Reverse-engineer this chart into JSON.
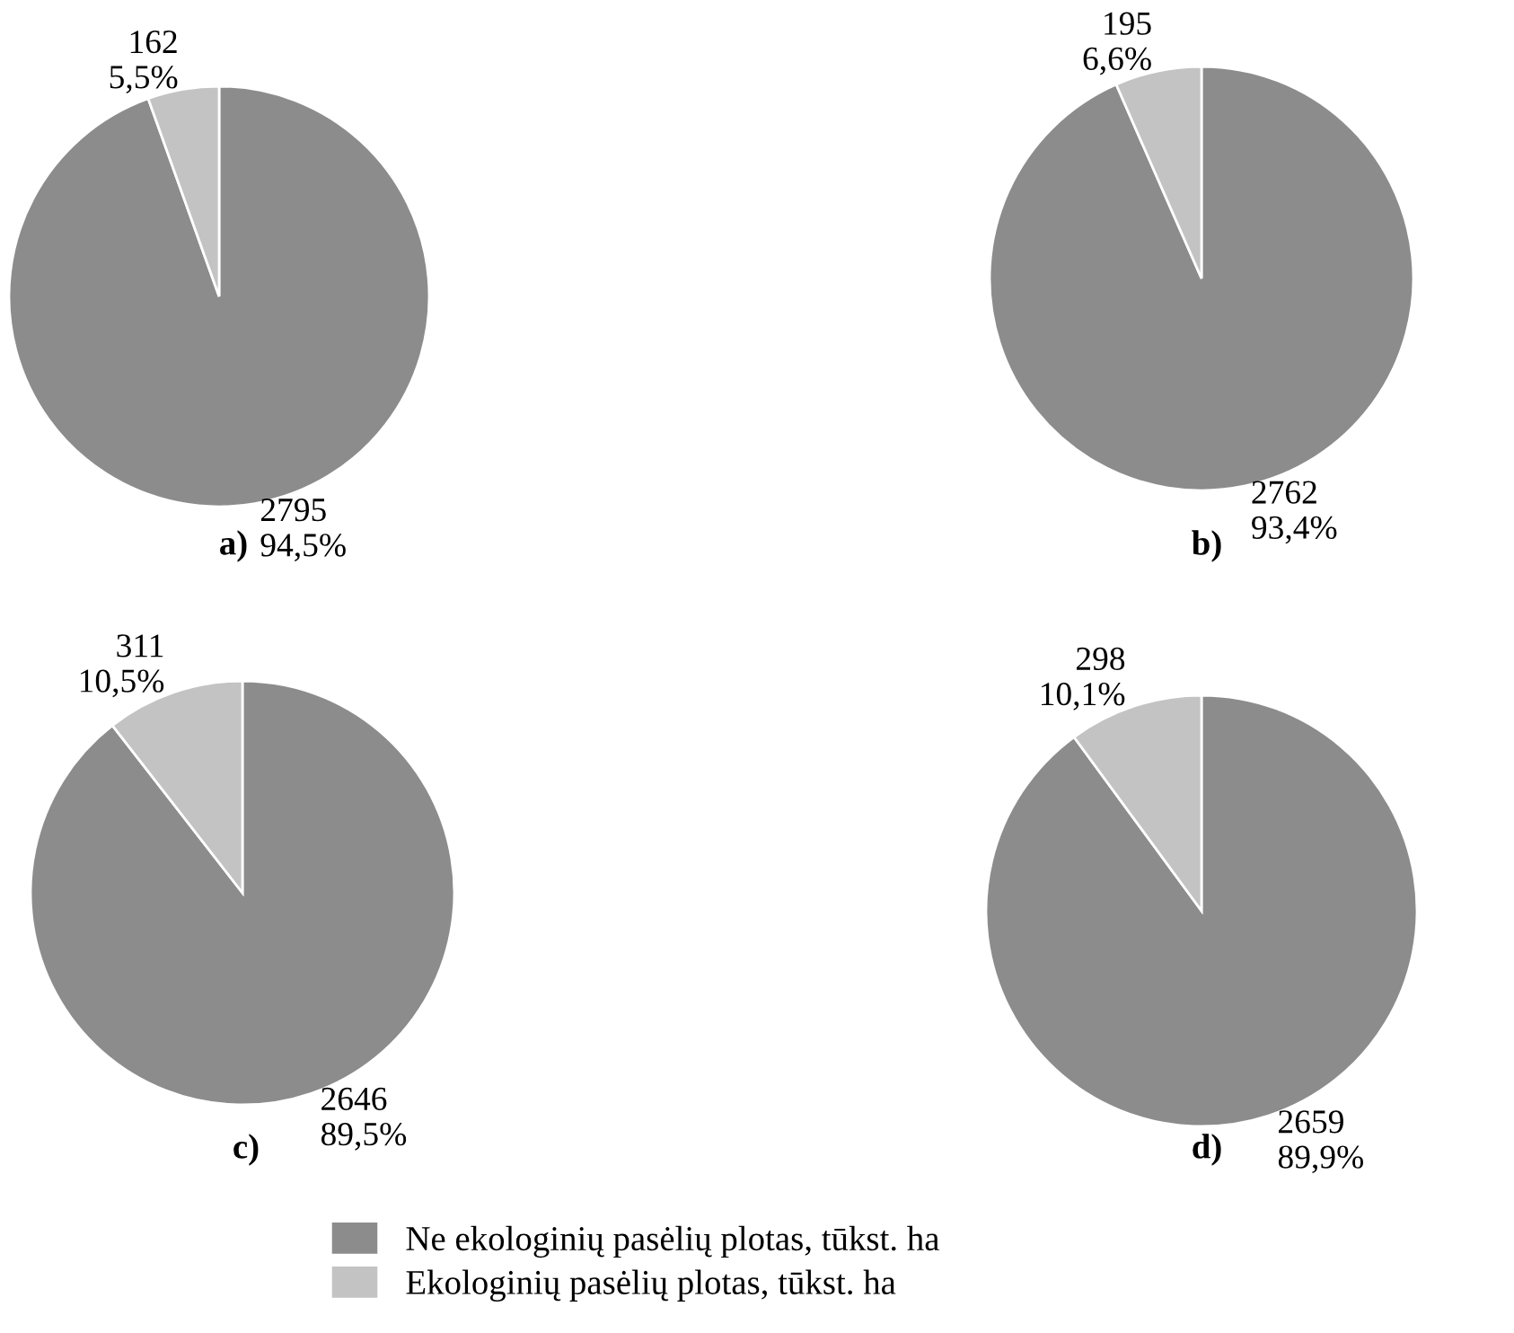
{
  "chart_data": [
    {
      "type": "pie",
      "title": "a)",
      "categories": [
        "Ne ekologinių pasėlių plotas, tūkst. ha",
        "Ekologinių pasėlių plotas, tūkst. ha"
      ],
      "values": [
        2795,
        162
      ],
      "colors": [
        "#8c8c8c",
        "#c3c3c3"
      ],
      "value_labels": [
        "2795\n94,5%",
        "162\n5,5%"
      ],
      "legend": "bottom"
    },
    {
      "type": "pie",
      "title": "b)",
      "categories": [
        null,
        null
      ],
      "values": [
        2762,
        195
      ],
      "colors": [
        "#8c8c8c",
        "#c3c3c3"
      ],
      "value_labels": [
        "2762\n93,4%",
        "195\n6,6%"
      ]
    },
    {
      "type": "pie",
      "title": "c)",
      "categories": [
        null,
        null
      ],
      "values": [
        2646,
        311
      ],
      "colors": [
        "#8c8c8c",
        "#c3c3c3"
      ],
      "value_labels": [
        "2646\n89,5%",
        "311\n10,5%"
      ]
    },
    {
      "type": "pie",
      "title": "d)",
      "categories": [
        null,
        null
      ],
      "values": [
        2659,
        298
      ],
      "colors": [
        "#8c8c8c",
        "#c3c3c3"
      ],
      "value_labels": [
        "2659\n89,9%",
        "298\n10,1%"
      ]
    }
  ]
}
